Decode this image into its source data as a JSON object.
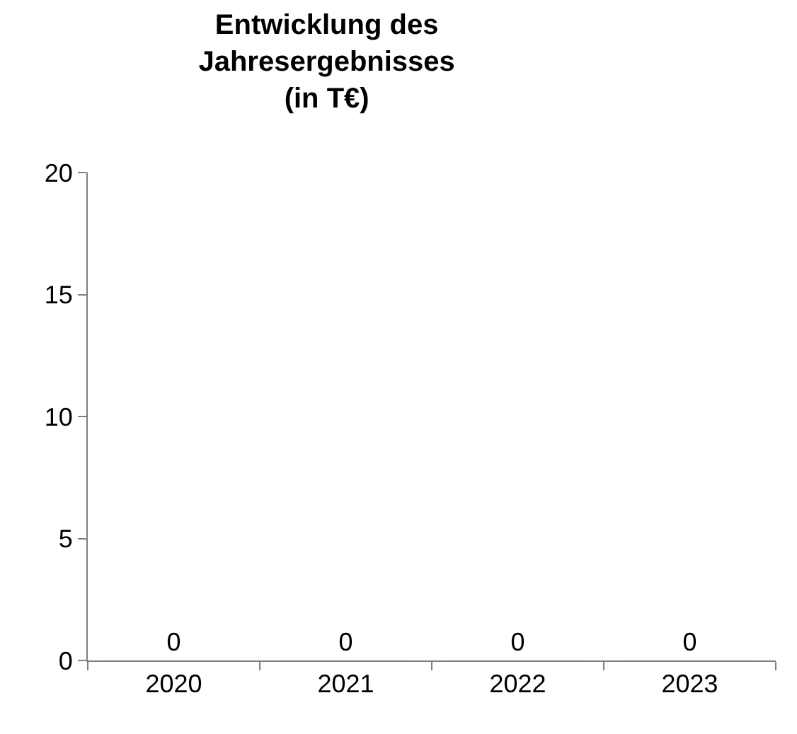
{
  "chart_data": {
    "type": "bar",
    "title": "Entwicklung des\nJahresergebnisses\n(in T€)",
    "categories": [
      "2020",
      "2021",
      "2022",
      "2023"
    ],
    "values": [
      0,
      0,
      0,
      0
    ],
    "ylim": [
      0,
      20
    ],
    "yticks": [
      0,
      5,
      10,
      15,
      20
    ],
    "data_labels": true
  }
}
